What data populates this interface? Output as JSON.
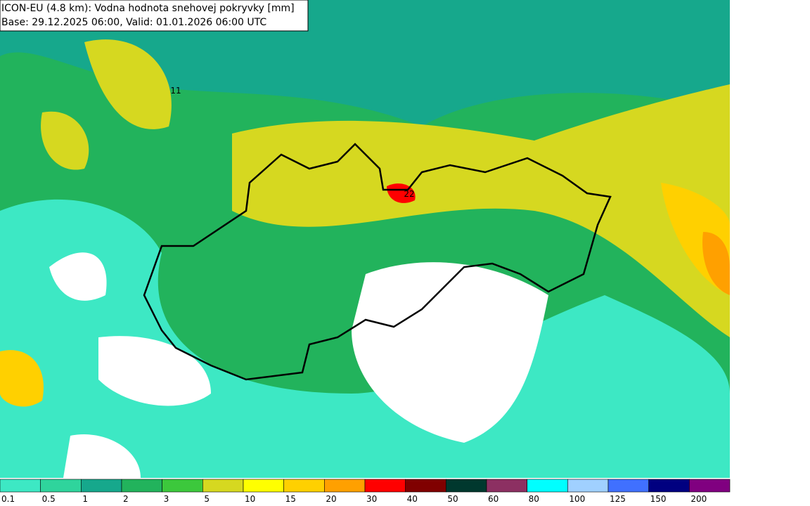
{
  "header": {
    "lines": [
      "ICON-EU (4.8 km): Vodna hodnota snehovej pokryvky [mm]",
      "Base: 29.12.2025 06:00, Valid: 01.01.2026 06:00 UTC"
    ]
  },
  "map": {
    "labels": [
      "11",
      "22"
    ]
  },
  "legend": {
    "items": [
      {
        "label": "0.1",
        "color": "#3de8c4"
      },
      {
        "label": "0.5",
        "color": "#2fd49c"
      },
      {
        "label": "1",
        "color": "#16a88c"
      },
      {
        "label": "2",
        "color": "#22b35c"
      },
      {
        "label": "3",
        "color": "#3cc83c"
      },
      {
        "label": "5",
        "color": "#d6d820"
      },
      {
        "label": "10",
        "color": "#ffff00"
      },
      {
        "label": "15",
        "color": "#ffd000"
      },
      {
        "label": "20",
        "color": "#ffa000"
      },
      {
        "label": "30",
        "color": "#ff0000"
      },
      {
        "label": "40",
        "color": "#800000"
      },
      {
        "label": "50",
        "color": "#00382e"
      },
      {
        "label": "60",
        "color": "#8c3062"
      },
      {
        "label": "80",
        "color": "#00ffff"
      },
      {
        "label": "100",
        "color": "#a0d0ff"
      },
      {
        "label": "125",
        "color": "#4070ff"
      },
      {
        "label": "150",
        "color": "#000080"
      },
      {
        "label": "200",
        "color": "#800080"
      }
    ]
  }
}
